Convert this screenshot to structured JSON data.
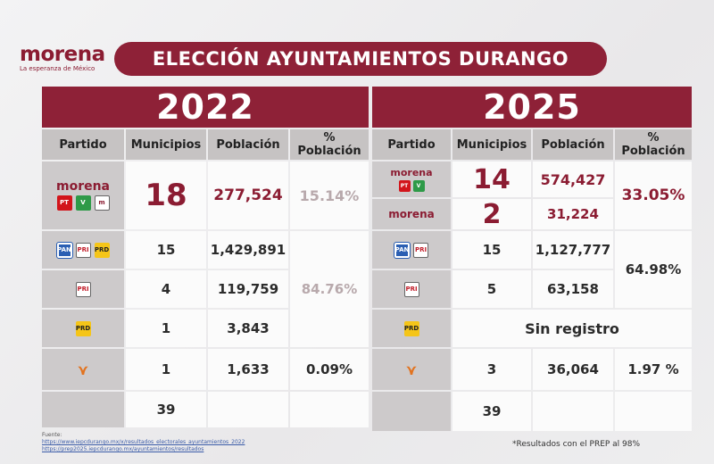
{
  "brand": {
    "name": "morena",
    "tagline": "La esperanza de México"
  },
  "title": "ELECCIÓN AYUNTAMIENTOS DURANGO",
  "left": {
    "year": "2022",
    "headers": {
      "partido": "Partido",
      "municipios": "Municipios",
      "poblacion": "Población",
      "pct": "% Población"
    },
    "rows": [
      {
        "party": "morena_coalition",
        "municipios": "18",
        "poblacion": "277,524",
        "pct": "15.14%"
      },
      {
        "party": "pan_pri_prd",
        "municipios": "15",
        "poblacion": "1,429,891"
      },
      {
        "party": "pri",
        "municipios": "4",
        "poblacion": "119,759"
      },
      {
        "party": "prd",
        "municipios": "1",
        "poblacion": "3,843"
      },
      {
        "party": "mc",
        "municipios": "1",
        "poblacion": "1,633",
        "pct": "0.09%"
      }
    ],
    "merged_pct": "84.76%",
    "total": "39"
  },
  "right": {
    "year": "2025",
    "headers": {
      "partido": "Partido",
      "municipios": "Municipios",
      "poblacion": "Población",
      "pct": "% Población"
    },
    "rows": [
      {
        "party": "morena_coalition",
        "municipios": "14",
        "poblacion": "574,427"
      },
      {
        "party": "morena",
        "municipios": "2",
        "poblacion": "31,224"
      },
      {
        "party": "pan_pri",
        "municipios": "15",
        "poblacion": "1,127,777"
      },
      {
        "party": "pri",
        "municipios": "5",
        "poblacion": "63,158"
      },
      {
        "party": "prd",
        "note": "Sin registro"
      },
      {
        "party": "mc",
        "municipios": "3",
        "poblacion": "36,064",
        "pct": "1.97 %"
      }
    ],
    "morena_pct": "33.05%",
    "panpri_pct": "64.98%",
    "total": "39"
  },
  "logo_labels": {
    "pt": "PT",
    "pvem": "V",
    "prd": "PRD",
    "pri": "PRI",
    "pan": "PAN",
    "mc": "MC"
  },
  "footer": {
    "sources_label": "Fuente:",
    "source1": "https://www.iepcdurango.mx/x/resultados_electorales_ayuntamientos_2022",
    "source2": "https://prep2025.iepcdurango.mx/ayuntamientos/resultados",
    "note": "*Resultados con el PREP al 98%"
  },
  "colors": {
    "maroon": "#8e2137",
    "header_gray": "#c6c3c3",
    "cell_gray": "#cdcacb"
  }
}
